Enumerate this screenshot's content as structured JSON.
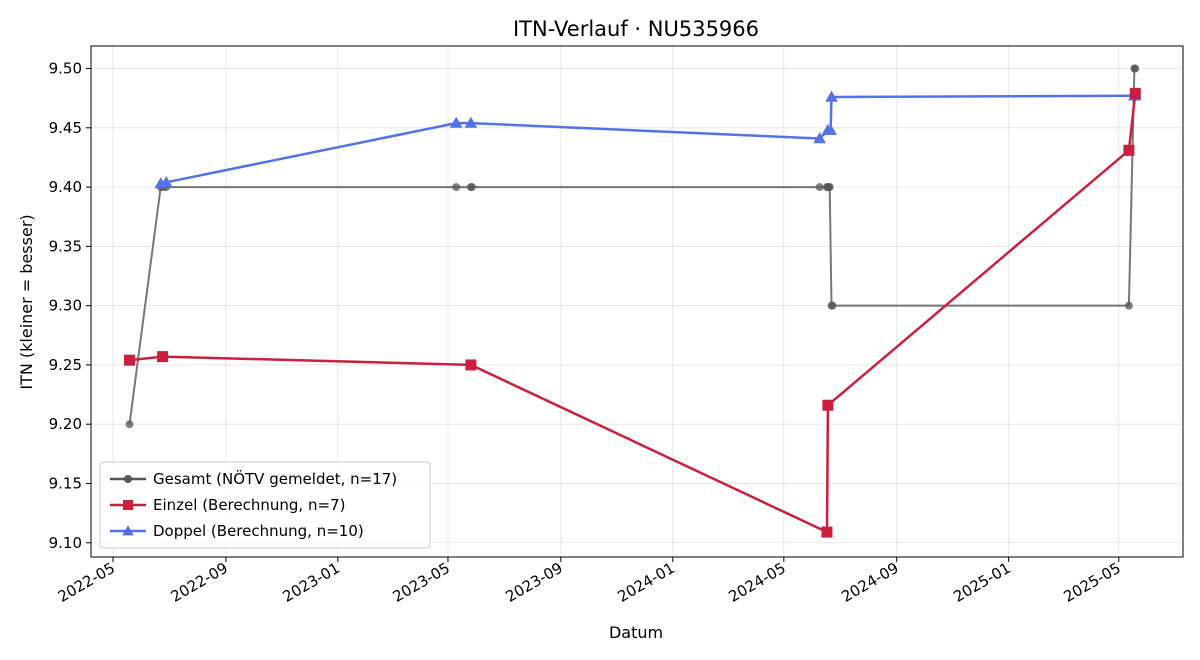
{
  "chart_data": {
    "type": "line",
    "title": "ITN-Verlauf · NU535966",
    "xlabel": "Datum",
    "ylabel": "ITN  (kleiner = besser)",
    "x_axis_type": "date",
    "xlim": [
      "2022-04-07",
      "2025-07-10"
    ],
    "ylim": [
      9.088,
      9.519
    ],
    "x_ticks": [
      "2022-05-01",
      "2022-09-01",
      "2023-01-01",
      "2023-05-01",
      "2023-09-01",
      "2024-01-01",
      "2024-05-01",
      "2024-09-01",
      "2025-01-01",
      "2025-05-01"
    ],
    "x_tick_labels": [
      "2022-05",
      "2022-09",
      "2023-01",
      "2023-05",
      "2023-09",
      "2024-01",
      "2024-05",
      "2024-09",
      "2025-01",
      "2025-05"
    ],
    "y_ticks": [
      9.1,
      9.15,
      9.2,
      9.25,
      9.3,
      9.35,
      9.4,
      9.45,
      9.5
    ],
    "y_tick_labels": [
      "9.10",
      "9.15",
      "9.20",
      "9.25",
      "9.30",
      "9.35",
      "9.40",
      "9.45",
      "9.50"
    ],
    "grid": true,
    "legend_position": "bottom-left",
    "series": [
      {
        "name": "Gesamt (NÖTV gemeldet, n=17)",
        "color": "#555555",
        "marker": "circle",
        "points": [
          {
            "x": "2022-05-19",
            "y": 9.2
          },
          {
            "x": "2022-06-22",
            "y": 9.4
          },
          {
            "x": "2022-06-25",
            "y": 9.4
          },
          {
            "x": "2022-06-28",
            "y": 9.4
          },
          {
            "x": "2023-05-10",
            "y": 9.4
          },
          {
            "x": "2023-05-26",
            "y": 9.4
          },
          {
            "x": "2023-05-27",
            "y": 9.4
          },
          {
            "x": "2024-06-09",
            "y": 9.4
          },
          {
            "x": "2024-06-17",
            "y": 9.4
          },
          {
            "x": "2024-06-18",
            "y": 9.4
          },
          {
            "x": "2024-06-19",
            "y": 9.4
          },
          {
            "x": "2024-06-20",
            "y": 9.4
          },
          {
            "x": "2024-06-22",
            "y": 9.3
          },
          {
            "x": "2024-06-23",
            "y": 9.3
          },
          {
            "x": "2025-05-12",
            "y": 9.3
          },
          {
            "x": "2025-05-18",
            "y": 9.5
          },
          {
            "x": "2025-05-19",
            "y": 9.5
          }
        ]
      },
      {
        "name": "Einzel (Berechnung, n=7)",
        "color": "#c8203e",
        "marker": "square",
        "points": [
          {
            "x": "2022-05-19",
            "y": 9.254
          },
          {
            "x": "2022-06-24",
            "y": 9.257
          },
          {
            "x": "2023-05-26",
            "y": 9.25
          },
          {
            "x": "2024-06-17",
            "y": 9.109
          },
          {
            "x": "2024-06-18",
            "y": 9.216
          },
          {
            "x": "2025-05-12",
            "y": 9.431
          },
          {
            "x": "2025-05-19",
            "y": 9.479
          }
        ]
      },
      {
        "name": "Doppel (Berechnung, n=10)",
        "color": "#5472e8",
        "marker": "triangle",
        "points": [
          {
            "x": "2022-06-22",
            "y": 9.403
          },
          {
            "x": "2022-06-28",
            "y": 9.404
          },
          {
            "x": "2023-05-10",
            "y": 9.454
          },
          {
            "x": "2023-05-26",
            "y": 9.454
          },
          {
            "x": "2024-06-09",
            "y": 9.441
          },
          {
            "x": "2024-06-18",
            "y": 9.448
          },
          {
            "x": "2024-06-21",
            "y": 9.448
          },
          {
            "x": "2024-06-22",
            "y": 9.476
          },
          {
            "x": "2025-05-18",
            "y": 9.477
          },
          {
            "x": "2025-05-19",
            "y": 9.477
          }
        ]
      }
    ]
  }
}
